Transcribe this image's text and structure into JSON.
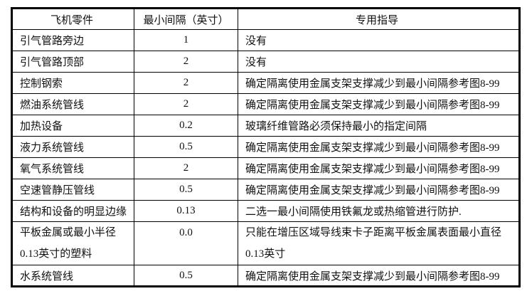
{
  "table": {
    "headers": [
      "飞机零件",
      "最小间隔（英寸）",
      "专用指导"
    ],
    "rows": [
      {
        "part": "引气管路旁边",
        "min_gap": "1",
        "guidance": "没有"
      },
      {
        "part": "引气管路顶部",
        "min_gap": "2",
        "guidance": "没有"
      },
      {
        "part": "控制钢索",
        "min_gap": "2",
        "guidance": "确定隔离使用金属支架支撑减少到最小间隔参考图8-99"
      },
      {
        "part": "燃油系统管线",
        "min_gap": "2",
        "guidance": "确定隔离使用金属支架支撑减少到最小间隔参考图8-99"
      },
      {
        "part": "加热设备",
        "min_gap": "0.2",
        "guidance": "玻璃纤维管路必须保持最小的指定间隔"
      },
      {
        "part": "液力系统管线",
        "min_gap": "0.5",
        "guidance": "确定隔离使用金属支架支撑减少到最小间隔参考图8-99"
      },
      {
        "part": "氧气系统管线",
        "min_gap": "2",
        "guidance": "确定隔离使用金属支架支撑减少到最小间隔参考图8-99"
      },
      {
        "part": "空速管静压管线",
        "min_gap": "0.5",
        "guidance": "确定隔离使用金属支架支撑减少到最小间隔参考图8-99"
      },
      {
        "part": "结构和设备的明显边缘",
        "min_gap": "0.13",
        "guidance": "二选一最小间隔使用铁氟龙或热缩管进行防护."
      },
      {
        "part_lines": [
          "平板金属或最小半径",
          "0.13英寸的塑料"
        ],
        "min_gap": "0.0",
        "guidance_lines": [
          "只能在增压区域导线束卡子距离平板金属表面最小直径",
          "0.13英寸"
        ]
      },
      {
        "part": "水系统管线",
        "min_gap": "0.5",
        "guidance": "确定隔离使用金属支架支撑减少到最小间隔参考图8-99"
      }
    ]
  }
}
